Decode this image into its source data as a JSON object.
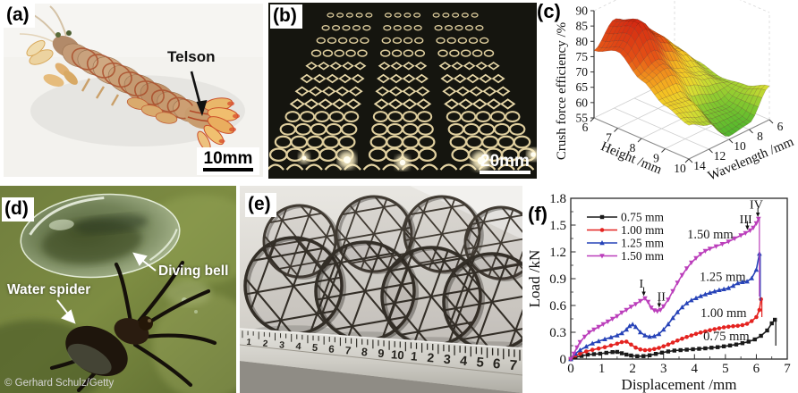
{
  "figure": {
    "panels": {
      "a": {
        "label": "(a)",
        "annotation": "Telson",
        "scale_bar": "10mm"
      },
      "b": {
        "label": "(b)",
        "scale_bar": "20mm"
      },
      "c": {
        "label": "(c)"
      },
      "d": {
        "label": "(d)",
        "annotation_bubble": "Diving bell",
        "annotation_spider": "Water spider",
        "credit": "© Gerhard Schulz/Getty"
      },
      "e": {
        "label": "(e)",
        "ruler_numbers": [
          "1",
          "2",
          "3",
          "4",
          "5",
          "6",
          "7",
          "8",
          "9",
          "10",
          "1",
          "2",
          "3",
          "4",
          "5",
          "6",
          "7"
        ]
      },
      "f": {
        "label": "(f)"
      }
    }
  },
  "chart_data": [
    {
      "type": "surface",
      "panel": "c",
      "zlabel": "Crush force efficiency /%",
      "xlabel": "Height /mm",
      "ylabel": "Wavelength /mm",
      "x_ticks": [
        6,
        7,
        8,
        9,
        10
      ],
      "y_ticks": [
        14,
        12,
        10,
        8,
        6
      ],
      "z_ticks": [
        55,
        60,
        65,
        70,
        75,
        80,
        85,
        90
      ],
      "zlim": [
        55,
        90
      ],
      "height_values": [
        6,
        7,
        8,
        9,
        10
      ],
      "wavelength_values": [
        6,
        8,
        10,
        12,
        14
      ],
      "efficiency_grid": [
        [
          66,
          73,
          80,
          84,
          77
        ],
        [
          64,
          71,
          79,
          87,
          80
        ],
        [
          62,
          66,
          70,
          76,
          74
        ],
        [
          63,
          59,
          60,
          68,
          69
        ],
        [
          66,
          57,
          56,
          63,
          66
        ]
      ],
      "colormap": [
        {
          "z": 55,
          "c": "#43b22c"
        },
        {
          "z": 61,
          "c": "#8ccb30"
        },
        {
          "z": 66,
          "c": "#dade33"
        },
        {
          "z": 70,
          "c": "#f5c924"
        },
        {
          "z": 74,
          "c": "#f1951d"
        },
        {
          "z": 78,
          "c": "#e55316"
        },
        {
          "z": 90,
          "c": "#cc1810"
        }
      ]
    },
    {
      "type": "line",
      "panel": "f",
      "xlabel": "Displacement /mm",
      "ylabel": "Load /kN",
      "xlim": [
        0,
        7
      ],
      "ylim": [
        0,
        1.8
      ],
      "x_ticks": [
        0,
        1,
        2,
        3,
        4,
        5,
        6,
        7
      ],
      "y_ticks": [
        "0",
        "0.3",
        "0.6",
        "0.9",
        "1.2",
        "1.5",
        "1.8"
      ],
      "legend_position": "top-left",
      "series": [
        {
          "name": "0.75 mm",
          "color": "#1a1a1a",
          "marker": "square",
          "drop_to": 0.15,
          "points": [
            [
              0,
              0
            ],
            [
              0.15,
              0.02
            ],
            [
              0.35,
              0.035
            ],
            [
              0.55,
              0.05
            ],
            [
              0.75,
              0.055
            ],
            [
              0.95,
              0.06
            ],
            [
              1.15,
              0.07
            ],
            [
              1.35,
              0.078
            ],
            [
              1.5,
              0.08
            ],
            [
              1.65,
              0.065
            ],
            [
              1.8,
              0.05
            ],
            [
              1.95,
              0.04
            ],
            [
              2.15,
              0.032
            ],
            [
              2.35,
              0.033
            ],
            [
              2.55,
              0.042
            ],
            [
              2.75,
              0.058
            ],
            [
              2.95,
              0.072
            ],
            [
              3.15,
              0.085
            ],
            [
              3.35,
              0.095
            ],
            [
              3.55,
              0.1
            ],
            [
              3.75,
              0.105
            ],
            [
              3.95,
              0.11
            ],
            [
              4.15,
              0.115
            ],
            [
              4.35,
              0.12
            ],
            [
              4.55,
              0.127
            ],
            [
              4.75,
              0.133
            ],
            [
              4.95,
              0.142
            ],
            [
              5.15,
              0.152
            ],
            [
              5.35,
              0.163
            ],
            [
              5.55,
              0.178
            ],
            [
              5.75,
              0.195
            ],
            [
              5.95,
              0.22
            ],
            [
              6.15,
              0.26
            ],
            [
              6.35,
              0.32
            ],
            [
              6.5,
              0.4
            ],
            [
              6.6,
              0.44
            ]
          ]
        },
        {
          "name": "1.00 mm",
          "color": "#e42320",
          "marker": "circle",
          "drop_to": 0.47,
          "points": [
            [
              0,
              0
            ],
            [
              0.15,
              0.04
            ],
            [
              0.3,
              0.06
            ],
            [
              0.5,
              0.085
            ],
            [
              0.7,
              0.103
            ],
            [
              0.9,
              0.118
            ],
            [
              1.1,
              0.133
            ],
            [
              1.3,
              0.152
            ],
            [
              1.5,
              0.172
            ],
            [
              1.65,
              0.19
            ],
            [
              1.8,
              0.195
            ],
            [
              1.95,
              0.162
            ],
            [
              2.1,
              0.128
            ],
            [
              2.25,
              0.108
            ],
            [
              2.4,
              0.1
            ],
            [
              2.55,
              0.102
            ],
            [
              2.7,
              0.112
            ],
            [
              2.85,
              0.125
            ],
            [
              3.0,
              0.143
            ],
            [
              3.15,
              0.163
            ],
            [
              3.3,
              0.185
            ],
            [
              3.45,
              0.207
            ],
            [
              3.6,
              0.228
            ],
            [
              3.75,
              0.247
            ],
            [
              3.9,
              0.265
            ],
            [
              4.05,
              0.282
            ],
            [
              4.2,
              0.297
            ],
            [
              4.35,
              0.31
            ],
            [
              4.5,
              0.323
            ],
            [
              4.65,
              0.335
            ],
            [
              4.8,
              0.345
            ],
            [
              4.95,
              0.355
            ],
            [
              5.1,
              0.362
            ],
            [
              5.25,
              0.368
            ],
            [
              5.4,
              0.372
            ],
            [
              5.55,
              0.38
            ],
            [
              5.7,
              0.395
            ],
            [
              5.85,
              0.425
            ],
            [
              6.0,
              0.47
            ],
            [
              6.1,
              0.55
            ],
            [
              6.15,
              0.67
            ]
          ]
        },
        {
          "name": "1.25 mm",
          "color": "#2743b8",
          "marker": "triangle-up",
          "drop_to": 0.65,
          "points": [
            [
              0,
              0
            ],
            [
              0.15,
              0.06
            ],
            [
              0.3,
              0.1
            ],
            [
              0.5,
              0.14
            ],
            [
              0.7,
              0.175
            ],
            [
              0.9,
              0.2
            ],
            [
              1.1,
              0.222
            ],
            [
              1.3,
              0.243
            ],
            [
              1.5,
              0.265
            ],
            [
              1.65,
              0.29
            ],
            [
              1.8,
              0.33
            ],
            [
              1.9,
              0.37
            ],
            [
              2.0,
              0.388
            ],
            [
              2.1,
              0.36
            ],
            [
              2.25,
              0.3
            ],
            [
              2.4,
              0.265
            ],
            [
              2.55,
              0.25
            ],
            [
              2.7,
              0.256
            ],
            [
              2.85,
              0.28
            ],
            [
              3.0,
              0.33
            ],
            [
              3.15,
              0.39
            ],
            [
              3.3,
              0.46
            ],
            [
              3.45,
              0.525
            ],
            [
              3.6,
              0.58
            ],
            [
              3.75,
              0.625
            ],
            [
              3.9,
              0.658
            ],
            [
              4.05,
              0.682
            ],
            [
              4.2,
              0.705
            ],
            [
              4.35,
              0.725
            ],
            [
              4.5,
              0.742
            ],
            [
              4.65,
              0.757
            ],
            [
              4.8,
              0.772
            ],
            [
              4.95,
              0.782
            ],
            [
              5.1,
              0.795
            ],
            [
              5.25,
              0.82
            ],
            [
              5.4,
              0.85
            ],
            [
              5.55,
              0.862
            ],
            [
              5.7,
              0.868
            ],
            [
              5.85,
              0.905
            ],
            [
              6.0,
              1.0
            ],
            [
              6.1,
              1.18
            ]
          ]
        },
        {
          "name": "1.50 mm",
          "color": "#bb3fbb",
          "marker": "triangle-down",
          "drop_to": 0.7,
          "points": [
            [
              0,
              0
            ],
            [
              0.1,
              0.06
            ],
            [
              0.2,
              0.13
            ],
            [
              0.3,
              0.19
            ],
            [
              0.45,
              0.25
            ],
            [
              0.6,
              0.3
            ],
            [
              0.75,
              0.33
            ],
            [
              0.9,
              0.36
            ],
            [
              1.05,
              0.39
            ],
            [
              1.2,
              0.42
            ],
            [
              1.35,
              0.45
            ],
            [
              1.5,
              0.48
            ],
            [
              1.65,
              0.52
            ],
            [
              1.8,
              0.55
            ],
            [
              1.95,
              0.585
            ],
            [
              2.1,
              0.615
            ],
            [
              2.25,
              0.65
            ],
            [
              2.4,
              0.68
            ],
            [
              2.5,
              0.64
            ],
            [
              2.6,
              0.575
            ],
            [
              2.7,
              0.545
            ],
            [
              2.8,
              0.535
            ],
            [
              2.9,
              0.55
            ],
            [
              3.0,
              0.59
            ],
            [
              3.15,
              0.665
            ],
            [
              3.3,
              0.76
            ],
            [
              3.45,
              0.855
            ],
            [
              3.6,
              0.94
            ],
            [
              3.75,
              1.015
            ],
            [
              3.9,
              1.08
            ],
            [
              4.05,
              1.13
            ],
            [
              4.2,
              1.175
            ],
            [
              4.35,
              1.21
            ],
            [
              4.5,
              1.235
            ],
            [
              4.7,
              1.262
            ],
            [
              4.9,
              1.288
            ],
            [
              5.1,
              1.315
            ],
            [
              5.3,
              1.35
            ],
            [
              5.5,
              1.385
            ],
            [
              5.65,
              1.41
            ],
            [
              5.8,
              1.44
            ],
            [
              5.9,
              1.47
            ],
            [
              6.0,
              1.52
            ],
            [
              6.07,
              1.57
            ]
          ]
        }
      ],
      "series_labels": [
        {
          "text": "1.50 mm",
          "x": 4.51,
          "y": 1.35
        },
        {
          "text": "1.25 mm",
          "x": 4.91,
          "y": 0.875
        },
        {
          "text": "1.00 mm",
          "x": 4.94,
          "y": 0.47
        },
        {
          "text": "0.75 mm",
          "x": 5.03,
          "y": 0.21
        }
      ],
      "annotations": [
        {
          "text": "I",
          "lx": 2.28,
          "ly": 0.8,
          "ax": 2.36,
          "ay": 0.705
        },
        {
          "text": "II",
          "lx": 2.93,
          "ly": 0.655,
          "ax": 2.86,
          "ay": 0.575
        },
        {
          "text": "III",
          "lx": 5.66,
          "ly": 1.52,
          "ax": 5.71,
          "ay": 1.445
        },
        {
          "text": "IV",
          "lx": 6.0,
          "ly": 1.685,
          "ax": 6.05,
          "ay": 1.59
        }
      ]
    }
  ]
}
